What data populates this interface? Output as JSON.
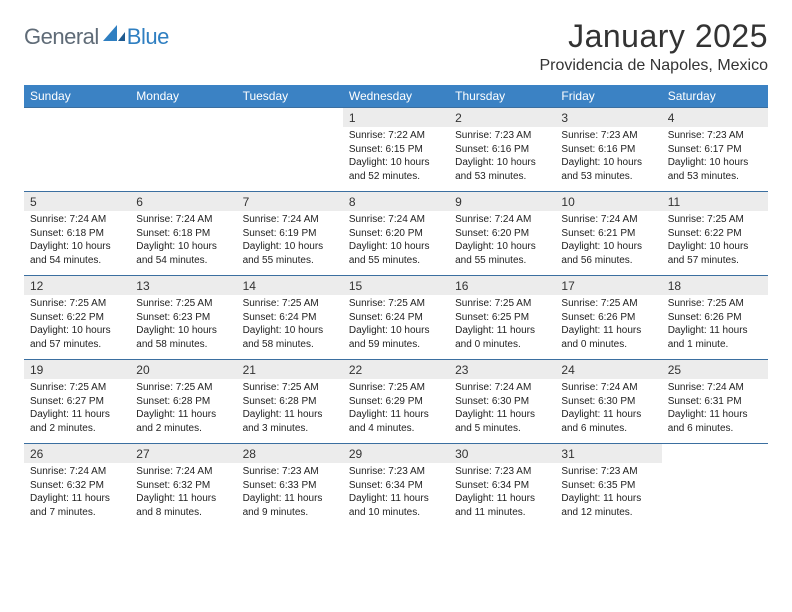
{
  "brand": {
    "text1": "General",
    "text2": "Blue"
  },
  "title": "January 2025",
  "location": "Providencia de Napoles, Mexico",
  "colors": {
    "header_bg": "#3b82c4",
    "header_text": "#ffffff",
    "daynum_bg": "#ececec",
    "divider": "#3b6fa0",
    "logo_gray": "#5f6b77",
    "logo_blue": "#2f7fc1",
    "page_bg": "#ffffff",
    "body_text": "#222222"
  },
  "typography": {
    "title_fontsize": 32,
    "location_fontsize": 16,
    "header_fontsize": 12,
    "daynum_fontsize": 12,
    "detail_fontsize": 10
  },
  "weekdays": [
    "Sunday",
    "Monday",
    "Tuesday",
    "Wednesday",
    "Thursday",
    "Friday",
    "Saturday"
  ],
  "weeks": [
    {
      "days": [
        {
          "num": "",
          "sunrise": "",
          "sunset": "",
          "daylight": ""
        },
        {
          "num": "",
          "sunrise": "",
          "sunset": "",
          "daylight": ""
        },
        {
          "num": "",
          "sunrise": "",
          "sunset": "",
          "daylight": ""
        },
        {
          "num": "1",
          "sunrise": "Sunrise: 7:22 AM",
          "sunset": "Sunset: 6:15 PM",
          "daylight": "Daylight: 10 hours and 52 minutes."
        },
        {
          "num": "2",
          "sunrise": "Sunrise: 7:23 AM",
          "sunset": "Sunset: 6:16 PM",
          "daylight": "Daylight: 10 hours and 53 minutes."
        },
        {
          "num": "3",
          "sunrise": "Sunrise: 7:23 AM",
          "sunset": "Sunset: 6:16 PM",
          "daylight": "Daylight: 10 hours and 53 minutes."
        },
        {
          "num": "4",
          "sunrise": "Sunrise: 7:23 AM",
          "sunset": "Sunset: 6:17 PM",
          "daylight": "Daylight: 10 hours and 53 minutes."
        }
      ]
    },
    {
      "days": [
        {
          "num": "5",
          "sunrise": "Sunrise: 7:24 AM",
          "sunset": "Sunset: 6:18 PM",
          "daylight": "Daylight: 10 hours and 54 minutes."
        },
        {
          "num": "6",
          "sunrise": "Sunrise: 7:24 AM",
          "sunset": "Sunset: 6:18 PM",
          "daylight": "Daylight: 10 hours and 54 minutes."
        },
        {
          "num": "7",
          "sunrise": "Sunrise: 7:24 AM",
          "sunset": "Sunset: 6:19 PM",
          "daylight": "Daylight: 10 hours and 55 minutes."
        },
        {
          "num": "8",
          "sunrise": "Sunrise: 7:24 AM",
          "sunset": "Sunset: 6:20 PM",
          "daylight": "Daylight: 10 hours and 55 minutes."
        },
        {
          "num": "9",
          "sunrise": "Sunrise: 7:24 AM",
          "sunset": "Sunset: 6:20 PM",
          "daylight": "Daylight: 10 hours and 55 minutes."
        },
        {
          "num": "10",
          "sunrise": "Sunrise: 7:24 AM",
          "sunset": "Sunset: 6:21 PM",
          "daylight": "Daylight: 10 hours and 56 minutes."
        },
        {
          "num": "11",
          "sunrise": "Sunrise: 7:25 AM",
          "sunset": "Sunset: 6:22 PM",
          "daylight": "Daylight: 10 hours and 57 minutes."
        }
      ]
    },
    {
      "days": [
        {
          "num": "12",
          "sunrise": "Sunrise: 7:25 AM",
          "sunset": "Sunset: 6:22 PM",
          "daylight": "Daylight: 10 hours and 57 minutes."
        },
        {
          "num": "13",
          "sunrise": "Sunrise: 7:25 AM",
          "sunset": "Sunset: 6:23 PM",
          "daylight": "Daylight: 10 hours and 58 minutes."
        },
        {
          "num": "14",
          "sunrise": "Sunrise: 7:25 AM",
          "sunset": "Sunset: 6:24 PM",
          "daylight": "Daylight: 10 hours and 58 minutes."
        },
        {
          "num": "15",
          "sunrise": "Sunrise: 7:25 AM",
          "sunset": "Sunset: 6:24 PM",
          "daylight": "Daylight: 10 hours and 59 minutes."
        },
        {
          "num": "16",
          "sunrise": "Sunrise: 7:25 AM",
          "sunset": "Sunset: 6:25 PM",
          "daylight": "Daylight: 11 hours and 0 minutes."
        },
        {
          "num": "17",
          "sunrise": "Sunrise: 7:25 AM",
          "sunset": "Sunset: 6:26 PM",
          "daylight": "Daylight: 11 hours and 0 minutes."
        },
        {
          "num": "18",
          "sunrise": "Sunrise: 7:25 AM",
          "sunset": "Sunset: 6:26 PM",
          "daylight": "Daylight: 11 hours and 1 minute."
        }
      ]
    },
    {
      "days": [
        {
          "num": "19",
          "sunrise": "Sunrise: 7:25 AM",
          "sunset": "Sunset: 6:27 PM",
          "daylight": "Daylight: 11 hours and 2 minutes."
        },
        {
          "num": "20",
          "sunrise": "Sunrise: 7:25 AM",
          "sunset": "Sunset: 6:28 PM",
          "daylight": "Daylight: 11 hours and 2 minutes."
        },
        {
          "num": "21",
          "sunrise": "Sunrise: 7:25 AM",
          "sunset": "Sunset: 6:28 PM",
          "daylight": "Daylight: 11 hours and 3 minutes."
        },
        {
          "num": "22",
          "sunrise": "Sunrise: 7:25 AM",
          "sunset": "Sunset: 6:29 PM",
          "daylight": "Daylight: 11 hours and 4 minutes."
        },
        {
          "num": "23",
          "sunrise": "Sunrise: 7:24 AM",
          "sunset": "Sunset: 6:30 PM",
          "daylight": "Daylight: 11 hours and 5 minutes."
        },
        {
          "num": "24",
          "sunrise": "Sunrise: 7:24 AM",
          "sunset": "Sunset: 6:30 PM",
          "daylight": "Daylight: 11 hours and 6 minutes."
        },
        {
          "num": "25",
          "sunrise": "Sunrise: 7:24 AM",
          "sunset": "Sunset: 6:31 PM",
          "daylight": "Daylight: 11 hours and 6 minutes."
        }
      ]
    },
    {
      "days": [
        {
          "num": "26",
          "sunrise": "Sunrise: 7:24 AM",
          "sunset": "Sunset: 6:32 PM",
          "daylight": "Daylight: 11 hours and 7 minutes."
        },
        {
          "num": "27",
          "sunrise": "Sunrise: 7:24 AM",
          "sunset": "Sunset: 6:32 PM",
          "daylight": "Daylight: 11 hours and 8 minutes."
        },
        {
          "num": "28",
          "sunrise": "Sunrise: 7:23 AM",
          "sunset": "Sunset: 6:33 PM",
          "daylight": "Daylight: 11 hours and 9 minutes."
        },
        {
          "num": "29",
          "sunrise": "Sunrise: 7:23 AM",
          "sunset": "Sunset: 6:34 PM",
          "daylight": "Daylight: 11 hours and 10 minutes."
        },
        {
          "num": "30",
          "sunrise": "Sunrise: 7:23 AM",
          "sunset": "Sunset: 6:34 PM",
          "daylight": "Daylight: 11 hours and 11 minutes."
        },
        {
          "num": "31",
          "sunrise": "Sunrise: 7:23 AM",
          "sunset": "Sunset: 6:35 PM",
          "daylight": "Daylight: 11 hours and 12 minutes."
        },
        {
          "num": "",
          "sunrise": "",
          "sunset": "",
          "daylight": ""
        }
      ]
    }
  ]
}
